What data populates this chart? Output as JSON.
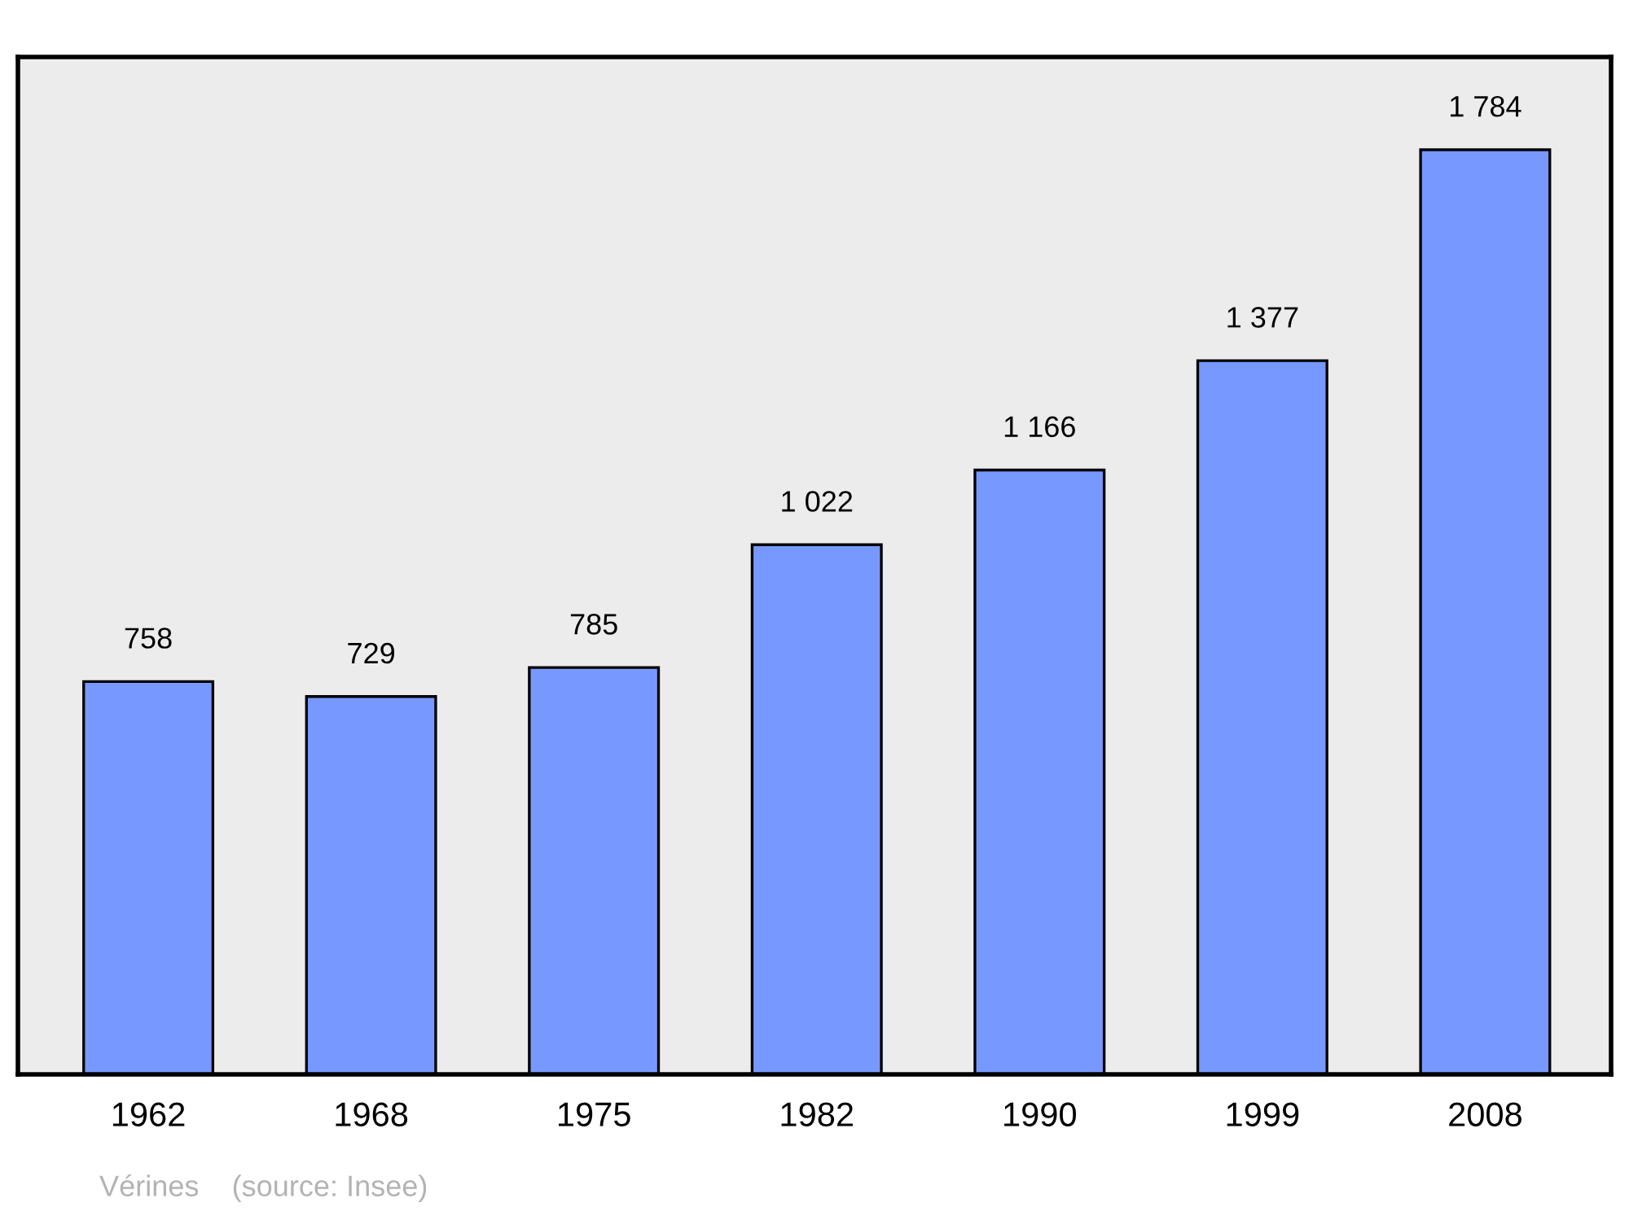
{
  "chart_data": {
    "type": "bar",
    "categories": [
      "1962",
      "1968",
      "1975",
      "1982",
      "1990",
      "1999",
      "2008"
    ],
    "values": [
      758,
      729,
      785,
      1022,
      1166,
      1377,
      1784
    ],
    "value_labels": [
      "758",
      "729",
      "785",
      "1 022",
      "1 166",
      "1 377",
      "1 784"
    ],
    "color": "#7799ff",
    "ylim": [
      0,
      1963
    ],
    "tick_labels": "x",
    "grid": false,
    "legend": false,
    "annotations": [
      "Vérines    (source: Insee)"
    ]
  }
}
